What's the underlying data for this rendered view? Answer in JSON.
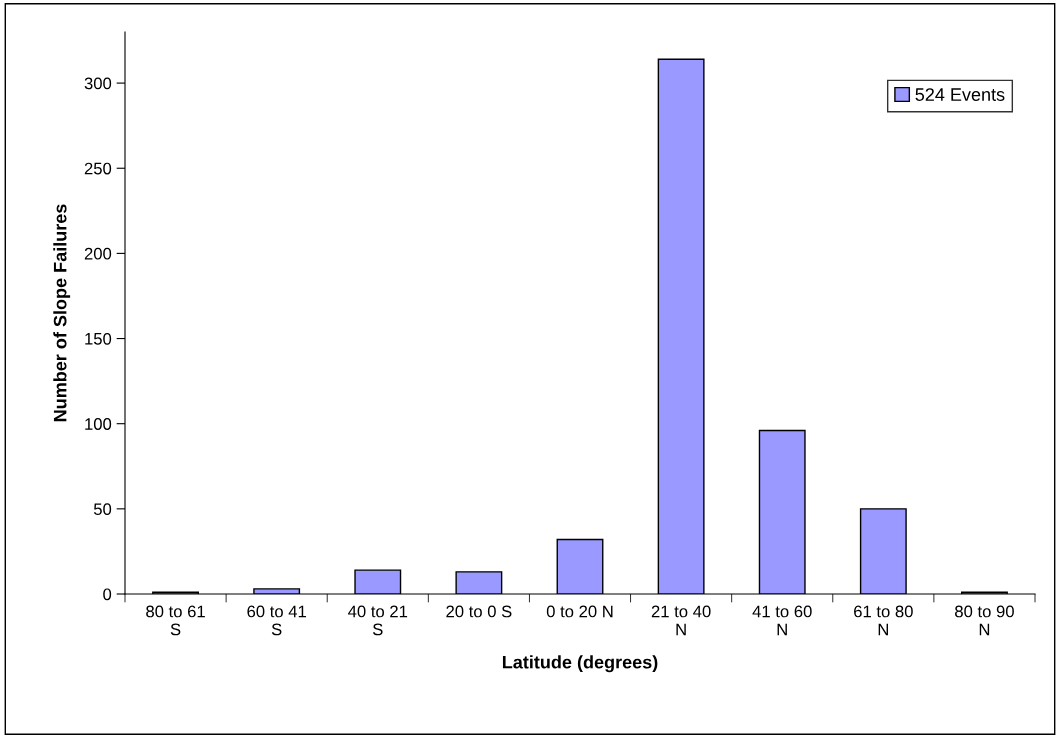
{
  "chart_data": {
    "type": "bar",
    "xlabel": "Latitude (degrees)",
    "ylabel": "Number of Slope Failures",
    "categories": [
      "80 to 61\nS",
      "60 to 41\nS",
      "40 to 21\nS",
      "20 to 0 S",
      "0 to 20 N",
      "21 to 40\nN",
      "41 to 60\nN",
      "61 to 80\nN",
      "80 to 90\nN"
    ],
    "series": [
      {
        "name": "524 Events",
        "color": "#9999ff",
        "values": [
          1,
          3,
          14,
          13,
          32,
          314,
          96,
          50,
          1
        ]
      }
    ],
    "ylim": [
      0,
      330
    ],
    "yticks": [
      0,
      50,
      100,
      150,
      200,
      250,
      300
    ],
    "grid": false,
    "legend": "top right"
  }
}
